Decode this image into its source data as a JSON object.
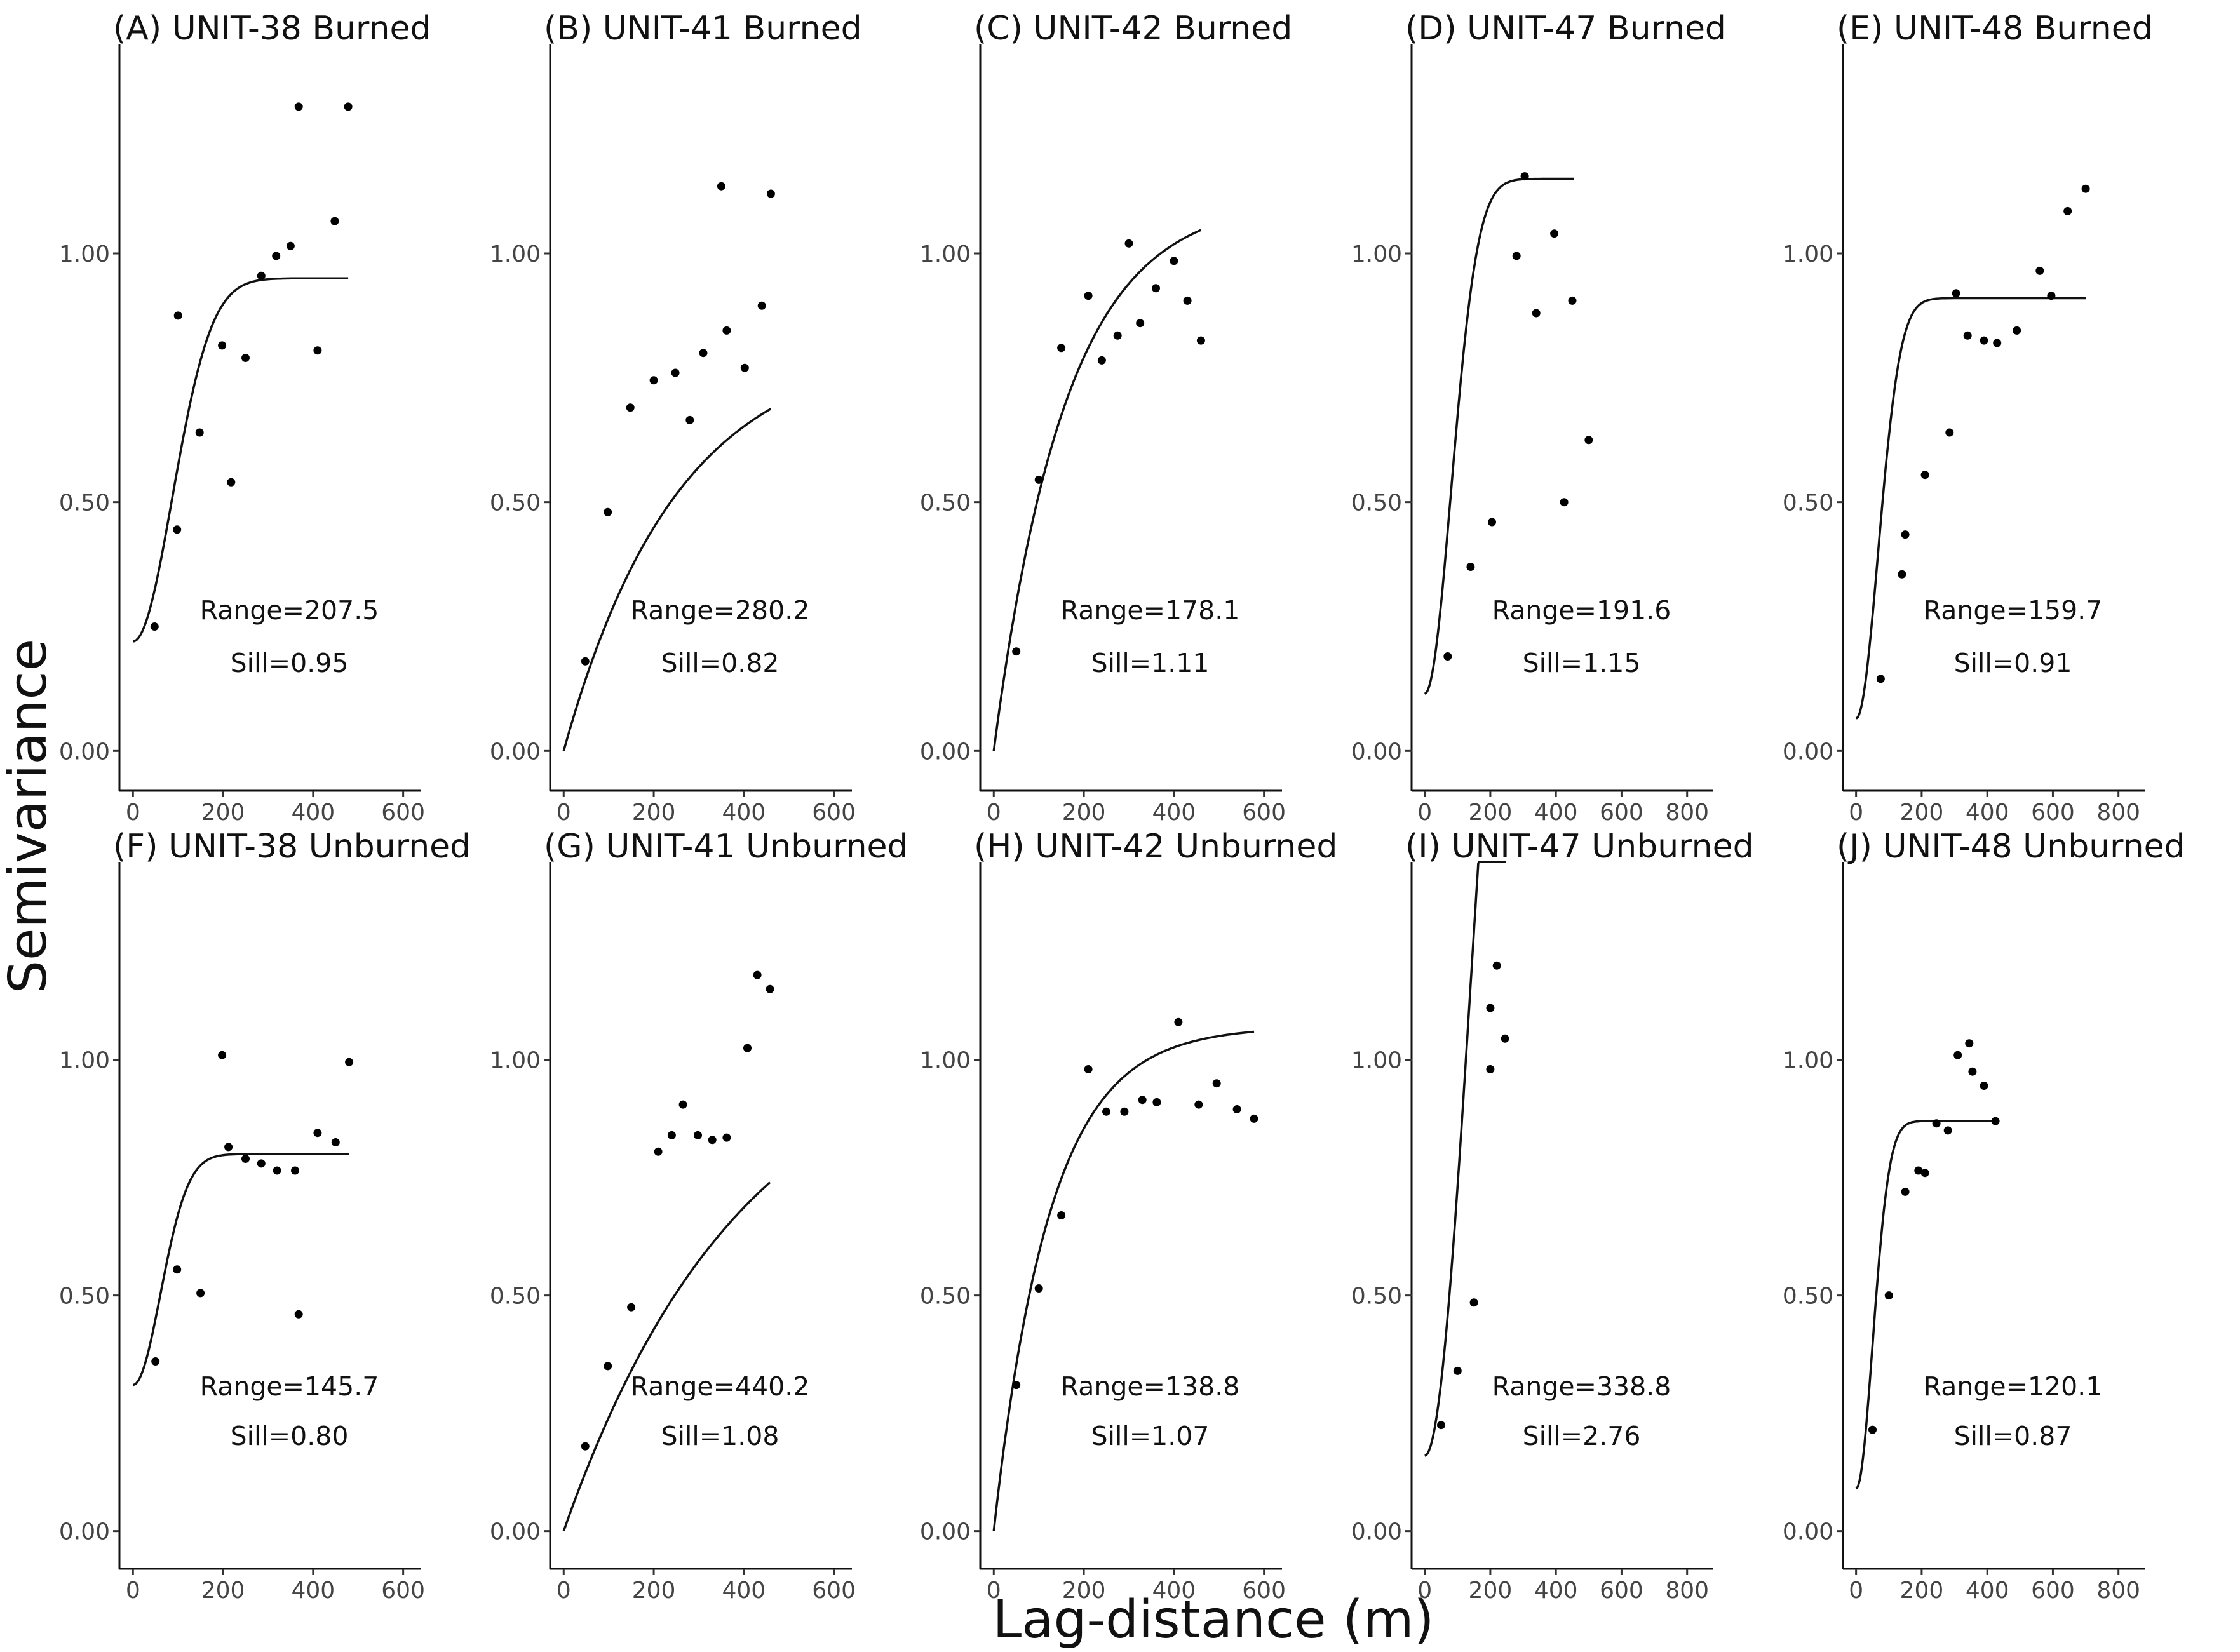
{
  "axis_titles": {
    "x": "Lag-distance (m)",
    "y": "Semivariance"
  },
  "chart_data": [
    {
      "type": "scatter",
      "title": "(A) UNIT-38 Burned",
      "model_range": 207.5,
      "model_sill": 0.95,
      "annot_range": "Range=207.5",
      "annot_sill": "Sill=0.95",
      "xlim": [
        -30,
        640
      ],
      "ylim": [
        -0.08,
        1.42
      ],
      "xticks": [
        0,
        200,
        400,
        600
      ],
      "xtick_labels": [
        "0",
        "200",
        "400",
        "600"
      ],
      "yticks": [
        0,
        0.5,
        1.0
      ],
      "ytick_labels": [
        "0.00",
        "0.50",
        "1.00"
      ],
      "points": [
        [
          48,
          0.25
        ],
        [
          98,
          0.445
        ],
        [
          100,
          0.875
        ],
        [
          148,
          0.64
        ],
        [
          198,
          0.815
        ],
        [
          218,
          0.54
        ],
        [
          250,
          0.79
        ],
        [
          285,
          0.955
        ],
        [
          318,
          0.995
        ],
        [
          350,
          1.015
        ],
        [
          368,
          1.295
        ],
        [
          410,
          0.805
        ],
        [
          448,
          1.065
        ],
        [
          478,
          1.295
        ]
      ],
      "fit": {
        "nugget": 0.22,
        "start": 0,
        "end": 478
      }
    },
    {
      "type": "scatter",
      "title": "(B) UNIT-41 Burned",
      "model_range": 280.2,
      "model_sill": 0.82,
      "annot_range": "Range=280.2",
      "annot_sill": "Sill=0.82",
      "xlim": [
        -30,
        640
      ],
      "ylim": [
        -0.08,
        1.42
      ],
      "xticks": [
        0,
        200,
        400,
        600
      ],
      "xtick_labels": [
        "0",
        "200",
        "400",
        "600"
      ],
      "yticks": [
        0,
        0.5,
        1.0
      ],
      "ytick_labels": [
        "0.00",
        "0.50",
        "1.00"
      ],
      "points": [
        [
          48,
          0.18
        ],
        [
          98,
          0.48
        ],
        [
          148,
          0.69
        ],
        [
          200,
          0.745
        ],
        [
          248,
          0.76
        ],
        [
          280,
          0.665
        ],
        [
          310,
          0.8
        ],
        [
          350,
          1.135
        ],
        [
          362,
          0.845
        ],
        [
          402,
          0.77
        ],
        [
          440,
          0.895
        ],
        [
          460,
          1.12
        ]
      ],
      "fit": {
        "nugget": 0.0,
        "start": 0,
        "end": 460
      }
    },
    {
      "type": "scatter",
      "title": "(C) UNIT-42 Burned",
      "model_range": 178.1,
      "model_sill": 1.11,
      "annot_range": "Range=178.1",
      "annot_sill": "Sill=1.11",
      "xlim": [
        -30,
        640
      ],
      "ylim": [
        -0.08,
        1.42
      ],
      "xticks": [
        0,
        200,
        400,
        600
      ],
      "xtick_labels": [
        "0",
        "200",
        "400",
        "600"
      ],
      "yticks": [
        0,
        0.5,
        1.0
      ],
      "ytick_labels": [
        "0.00",
        "0.50",
        "1.00"
      ],
      "points": [
        [
          50,
          0.2
        ],
        [
          100,
          0.545
        ],
        [
          150,
          0.81
        ],
        [
          210,
          0.915
        ],
        [
          240,
          0.785
        ],
        [
          275,
          0.835
        ],
        [
          300,
          1.02
        ],
        [
          325,
          0.86
        ],
        [
          360,
          0.93
        ],
        [
          400,
          0.985
        ],
        [
          430,
          0.905
        ],
        [
          460,
          0.825
        ]
      ],
      "fit": {
        "nugget": 0.0,
        "start": 0,
        "end": 460
      }
    },
    {
      "type": "scatter",
      "title": "(D) UNIT-47 Burned",
      "model_range": 191.6,
      "model_sill": 1.15,
      "annot_range": "Range=191.6",
      "annot_sill": "Sill=1.15",
      "xlim": [
        -40,
        880
      ],
      "ylim": [
        -0.08,
        1.42
      ],
      "xticks": [
        0,
        200,
        400,
        600,
        800
      ],
      "xtick_labels": [
        "0",
        "200",
        "400",
        "600",
        "800"
      ],
      "yticks": [
        0,
        0.5,
        1.0
      ],
      "ytick_labels": [
        "0.00",
        "0.50",
        "1.00"
      ],
      "points": [
        [
          70,
          0.19
        ],
        [
          140,
          0.37
        ],
        [
          205,
          0.46
        ],
        [
          280,
          0.995
        ],
        [
          305,
          1.155
        ],
        [
          340,
          0.88
        ],
        [
          395,
          1.04
        ],
        [
          425,
          0.5
        ],
        [
          450,
          0.905
        ],
        [
          500,
          0.625
        ]
      ],
      "fit": {
        "nugget": 0.115,
        "start": 0,
        "end": 455
      }
    },
    {
      "type": "scatter",
      "title": "(E) UNIT-48 Burned",
      "model_range": 159.7,
      "model_sill": 0.91,
      "annot_range": "Range=159.7",
      "annot_sill": "Sill=0.91",
      "xlim": [
        -40,
        880
      ],
      "ylim": [
        -0.08,
        1.42
      ],
      "xticks": [
        0,
        200,
        400,
        600,
        800
      ],
      "xtick_labels": [
        "0",
        "200",
        "400",
        "600",
        "800"
      ],
      "yticks": [
        0,
        0.5,
        1.0
      ],
      "ytick_labels": [
        "0.00",
        "0.50",
        "1.00"
      ],
      "points": [
        [
          75,
          0.145
        ],
        [
          140,
          0.355
        ],
        [
          150,
          0.435
        ],
        [
          210,
          0.555
        ],
        [
          285,
          0.64
        ],
        [
          305,
          0.92
        ],
        [
          340,
          0.835
        ],
        [
          390,
          0.825
        ],
        [
          430,
          0.82
        ],
        [
          490,
          0.845
        ],
        [
          560,
          0.965
        ],
        [
          595,
          0.915
        ],
        [
          645,
          1.085
        ],
        [
          700,
          1.13
        ]
      ],
      "fit": {
        "nugget": 0.065,
        "start": 0,
        "end": 700
      }
    },
    {
      "type": "scatter",
      "title": "(F) UNIT-38 Unburned",
      "model_range": 145.7,
      "model_sill": 0.8,
      "annot_range": "Range=145.7",
      "annot_sill": "Sill=0.80",
      "xlim": [
        -30,
        640
      ],
      "ylim": [
        -0.08,
        1.42
      ],
      "xticks": [
        0,
        200,
        400,
        600
      ],
      "xtick_labels": [
        "0",
        "200",
        "400",
        "600"
      ],
      "yticks": [
        0,
        0.5,
        1.0
      ],
      "ytick_labels": [
        "0.00",
        "0.50",
        "1.00"
      ],
      "points": [
        [
          50,
          0.36
        ],
        [
          98,
          0.555
        ],
        [
          150,
          0.505
        ],
        [
          198,
          1.01
        ],
        [
          212,
          0.815
        ],
        [
          250,
          0.79
        ],
        [
          285,
          0.78
        ],
        [
          320,
          0.765
        ],
        [
          360,
          0.765
        ],
        [
          368,
          0.46
        ],
        [
          410,
          0.845
        ],
        [
          450,
          0.825
        ],
        [
          480,
          0.995
        ]
      ],
      "fit": {
        "nugget": 0.31,
        "start": 0,
        "end": 480
      }
    },
    {
      "type": "scatter",
      "title": "(G) UNIT-41 Unburned",
      "model_range": 440.2,
      "model_sill": 1.08,
      "annot_range": "Range=440.2",
      "annot_sill": "Sill=1.08",
      "xlim": [
        -30,
        640
      ],
      "ylim": [
        -0.08,
        1.42
      ],
      "xticks": [
        0,
        200,
        400,
        600
      ],
      "xtick_labels": [
        "0",
        "200",
        "400",
        "600"
      ],
      "yticks": [
        0,
        0.5,
        1.0
      ],
      "ytick_labels": [
        "0.00",
        "0.50",
        "1.00"
      ],
      "points": [
        [
          48,
          0.18
        ],
        [
          98,
          0.35
        ],
        [
          150,
          0.475
        ],
        [
          210,
          0.805
        ],
        [
          240,
          0.84
        ],
        [
          265,
          0.905
        ],
        [
          298,
          0.84
        ],
        [
          330,
          0.83
        ],
        [
          362,
          0.835
        ],
        [
          408,
          1.025
        ],
        [
          430,
          1.18
        ],
        [
          458,
          1.15
        ]
      ],
      "fit": {
        "nugget": 0.0,
        "start": 0,
        "end": 458
      }
    },
    {
      "type": "scatter",
      "title": "(H) UNIT-42 Unburned",
      "model_range": 138.8,
      "model_sill": 1.07,
      "annot_range": "Range=138.8",
      "annot_sill": "Sill=1.07",
      "xlim": [
        -30,
        640
      ],
      "ylim": [
        -0.08,
        1.42
      ],
      "xticks": [
        0,
        200,
        400,
        600
      ],
      "xtick_labels": [
        "0",
        "200",
        "400",
        "600"
      ],
      "yticks": [
        0,
        0.5,
        1.0
      ],
      "ytick_labels": [
        "0.00",
        "0.50",
        "1.00"
      ],
      "points": [
        [
          50,
          0.31
        ],
        [
          100,
          0.515
        ],
        [
          150,
          0.67
        ],
        [
          210,
          0.98
        ],
        [
          250,
          0.89
        ],
        [
          290,
          0.89
        ],
        [
          330,
          0.915
        ],
        [
          362,
          0.91
        ],
        [
          410,
          1.08
        ],
        [
          455,
          0.905
        ],
        [
          495,
          0.95
        ],
        [
          540,
          0.895
        ],
        [
          578,
          0.875
        ]
      ],
      "fit": {
        "nugget": 0.0,
        "start": 0,
        "end": 578
      }
    },
    {
      "type": "scatter",
      "title": "(I) UNIT-47 Unburned",
      "model_range": 338.8,
      "model_sill": 2.76,
      "annot_range": "Range=338.8",
      "annot_sill": "Sill=2.76",
      "xlim": [
        -40,
        880
      ],
      "ylim": [
        -0.08,
        1.42
      ],
      "xticks": [
        0,
        200,
        400,
        600,
        800
      ],
      "xtick_labels": [
        "0",
        "200",
        "400",
        "600",
        "800"
      ],
      "yticks": [
        0,
        0.5,
        1.0
      ],
      "ytick_labels": [
        "0.00",
        "0.50",
        "1.00"
      ],
      "points": [
        [
          50,
          0.225
        ],
        [
          100,
          0.34
        ],
        [
          150,
          0.485
        ],
        [
          200,
          0.98
        ],
        [
          200,
          1.11
        ],
        [
          220,
          1.2
        ],
        [
          245,
          1.045
        ]
      ],
      "fit": {
        "nugget": 0.16,
        "start": 0,
        "end": 248
      }
    },
    {
      "type": "scatter",
      "title": "(J) UNIT-48 Unburned",
      "model_range": 120.1,
      "model_sill": 0.87,
      "annot_range": "Range=120.1",
      "annot_sill": "Sill=0.87",
      "xlim": [
        -40,
        880
      ],
      "ylim": [
        -0.08,
        1.42
      ],
      "xticks": [
        0,
        200,
        400,
        600,
        800
      ],
      "xtick_labels": [
        "0",
        "200",
        "400",
        "600",
        "800"
      ],
      "yticks": [
        0,
        0.5,
        1.0
      ],
      "ytick_labels": [
        "0.00",
        "0.50",
        "1.00"
      ],
      "points": [
        [
          50,
          0.215
        ],
        [
          100,
          0.5
        ],
        [
          150,
          0.72
        ],
        [
          190,
          0.765
        ],
        [
          210,
          0.76
        ],
        [
          245,
          0.865
        ],
        [
          280,
          0.85
        ],
        [
          310,
          1.01
        ],
        [
          345,
          1.035
        ],
        [
          355,
          0.975
        ],
        [
          390,
          0.945
        ],
        [
          425,
          0.87
        ]
      ],
      "fit": {
        "nugget": 0.09,
        "start": 0,
        "end": 425
      }
    }
  ]
}
